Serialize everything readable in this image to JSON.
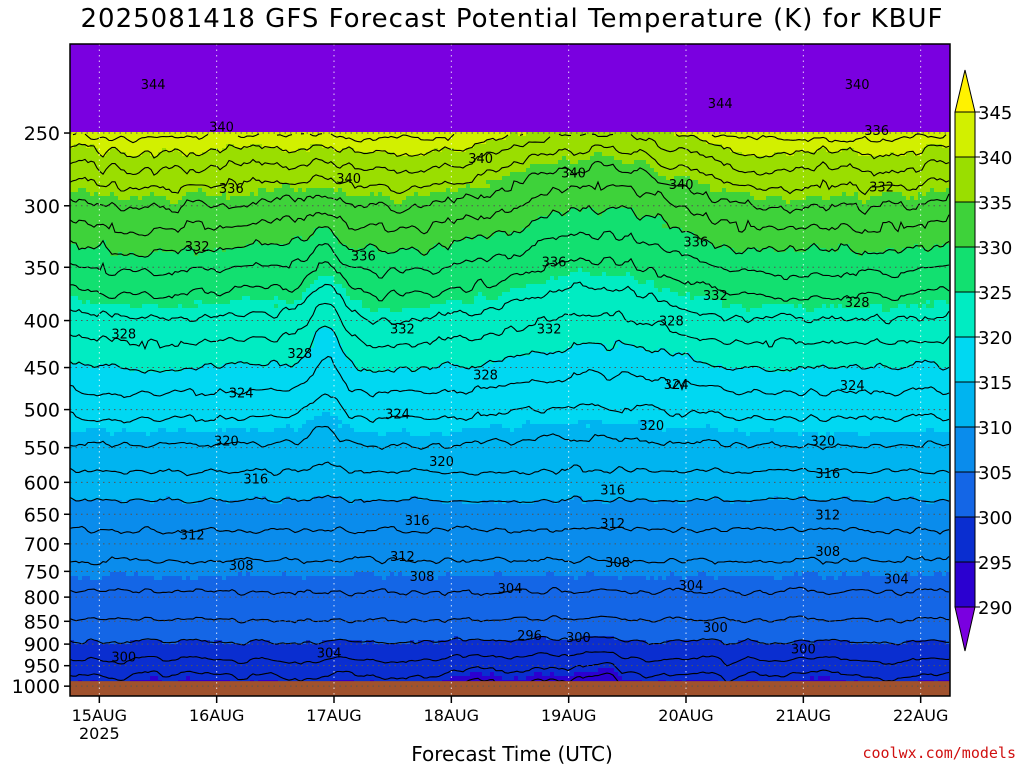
{
  "chart_data": {
    "type": "heatmap",
    "title": "2025081418 GFS Forecast Potential Temperature (K) for KBUF",
    "xlabel": "Forecast Time (UTC)",
    "ylabel": "",
    "x_ticks": [
      {
        "label": "15AUG",
        "sub": "2025",
        "t": 6
      },
      {
        "label": "16AUG",
        "sub": "",
        "t": 30
      },
      {
        "label": "17AUG",
        "sub": "",
        "t": 54
      },
      {
        "label": "18AUG",
        "sub": "",
        "t": 78
      },
      {
        "label": "19AUG",
        "sub": "",
        "t": 102
      },
      {
        "label": "20AUG",
        "sub": "",
        "t": 126
      },
      {
        "label": "21AUG",
        "sub": "",
        "t": 150
      },
      {
        "label": "22AUG",
        "sub": "",
        "t": 174
      }
    ],
    "xlim_hours_since_2025081418": [
      0,
      180
    ],
    "y_ticks_hpa": [
      250,
      300,
      350,
      400,
      450,
      500,
      550,
      600,
      650,
      700,
      750,
      800,
      850,
      900,
      950,
      1000
    ],
    "ylim_hpa": [
      1025,
      200
    ],
    "y_scale": "log",
    "grid": true,
    "colorbar": {
      "levels": [
        345,
        340,
        335,
        330,
        325,
        320,
        315,
        310,
        305,
        300,
        295,
        290
      ],
      "colors": [
        "#fff200",
        "#d2f000",
        "#9ade00",
        "#3ed23a",
        "#12e070",
        "#00ecc2",
        "#00d8f2",
        "#00b4f0",
        "#0a8cec",
        "#1466e6",
        "#0a2ed0",
        "#2b00d0",
        "#7a00e0"
      ]
    },
    "contour_labels": [
      {
        "text": "344",
        "t": 17,
        "p": 221
      },
      {
        "text": "344",
        "t": 133,
        "p": 232
      },
      {
        "text": "340",
        "t": 161,
        "p": 221
      },
      {
        "text": "340",
        "t": 31,
        "p": 246
      },
      {
        "text": "340",
        "t": 84,
        "p": 266
      },
      {
        "text": "340",
        "t": 57,
        "p": 280
      },
      {
        "text": "340",
        "t": 103,
        "p": 276
      },
      {
        "text": "340",
        "t": 125,
        "p": 284
      },
      {
        "text": "336",
        "t": 165,
        "p": 248
      },
      {
        "text": "336",
        "t": 33,
        "p": 287
      },
      {
        "text": "336",
        "t": 128,
        "p": 328
      },
      {
        "text": "336",
        "t": 60,
        "p": 340
      },
      {
        "text": "336",
        "t": 99,
        "p": 345
      },
      {
        "text": "332",
        "t": 166,
        "p": 286
      },
      {
        "text": "332",
        "t": 26,
        "p": 332
      },
      {
        "text": "332",
        "t": 132,
        "p": 375
      },
      {
        "text": "332",
        "t": 68,
        "p": 408
      },
      {
        "text": "332",
        "t": 98,
        "p": 408
      },
      {
        "text": "328",
        "t": 11,
        "p": 413
      },
      {
        "text": "328",
        "t": 161,
        "p": 382
      },
      {
        "text": "328",
        "t": 123,
        "p": 400
      },
      {
        "text": "328",
        "t": 47,
        "p": 434
      },
      {
        "text": "328",
        "t": 85,
        "p": 458
      },
      {
        "text": "324",
        "t": 35,
        "p": 479
      },
      {
        "text": "324",
        "t": 124,
        "p": 469
      },
      {
        "text": "324",
        "t": 160,
        "p": 470
      },
      {
        "text": "324",
        "t": 67,
        "p": 505
      },
      {
        "text": "320",
        "t": 32,
        "p": 540
      },
      {
        "text": "320",
        "t": 76,
        "p": 569
      },
      {
        "text": "320",
        "t": 119,
        "p": 520
      },
      {
        "text": "320",
        "t": 154,
        "p": 540
      },
      {
        "text": "316",
        "t": 38,
        "p": 594
      },
      {
        "text": "316",
        "t": 111,
        "p": 611
      },
      {
        "text": "316",
        "t": 155,
        "p": 586
      },
      {
        "text": "316",
        "t": 71,
        "p": 659
      },
      {
        "text": "312",
        "t": 25,
        "p": 684
      },
      {
        "text": "312",
        "t": 111,
        "p": 664
      },
      {
        "text": "312",
        "t": 155,
        "p": 650
      },
      {
        "text": "312",
        "t": 68,
        "p": 722
      },
      {
        "text": "308",
        "t": 35,
        "p": 738
      },
      {
        "text": "308",
        "t": 112,
        "p": 733
      },
      {
        "text": "308",
        "t": 155,
        "p": 713
      },
      {
        "text": "308",
        "t": 72,
        "p": 759
      },
      {
        "text": "304",
        "t": 90,
        "p": 782
      },
      {
        "text": "304",
        "t": 127,
        "p": 776
      },
      {
        "text": "304",
        "t": 169,
        "p": 764
      },
      {
        "text": "304",
        "t": 53,
        "p": 919
      },
      {
        "text": "300",
        "t": 132,
        "p": 862
      },
      {
        "text": "300",
        "t": 11,
        "p": 928
      },
      {
        "text": "300",
        "t": 104,
        "p": 884
      },
      {
        "text": "300",
        "t": 150,
        "p": 910
      },
      {
        "text": "296",
        "t": 94,
        "p": 880
      }
    ]
  },
  "credit": "coolwx.com/models"
}
